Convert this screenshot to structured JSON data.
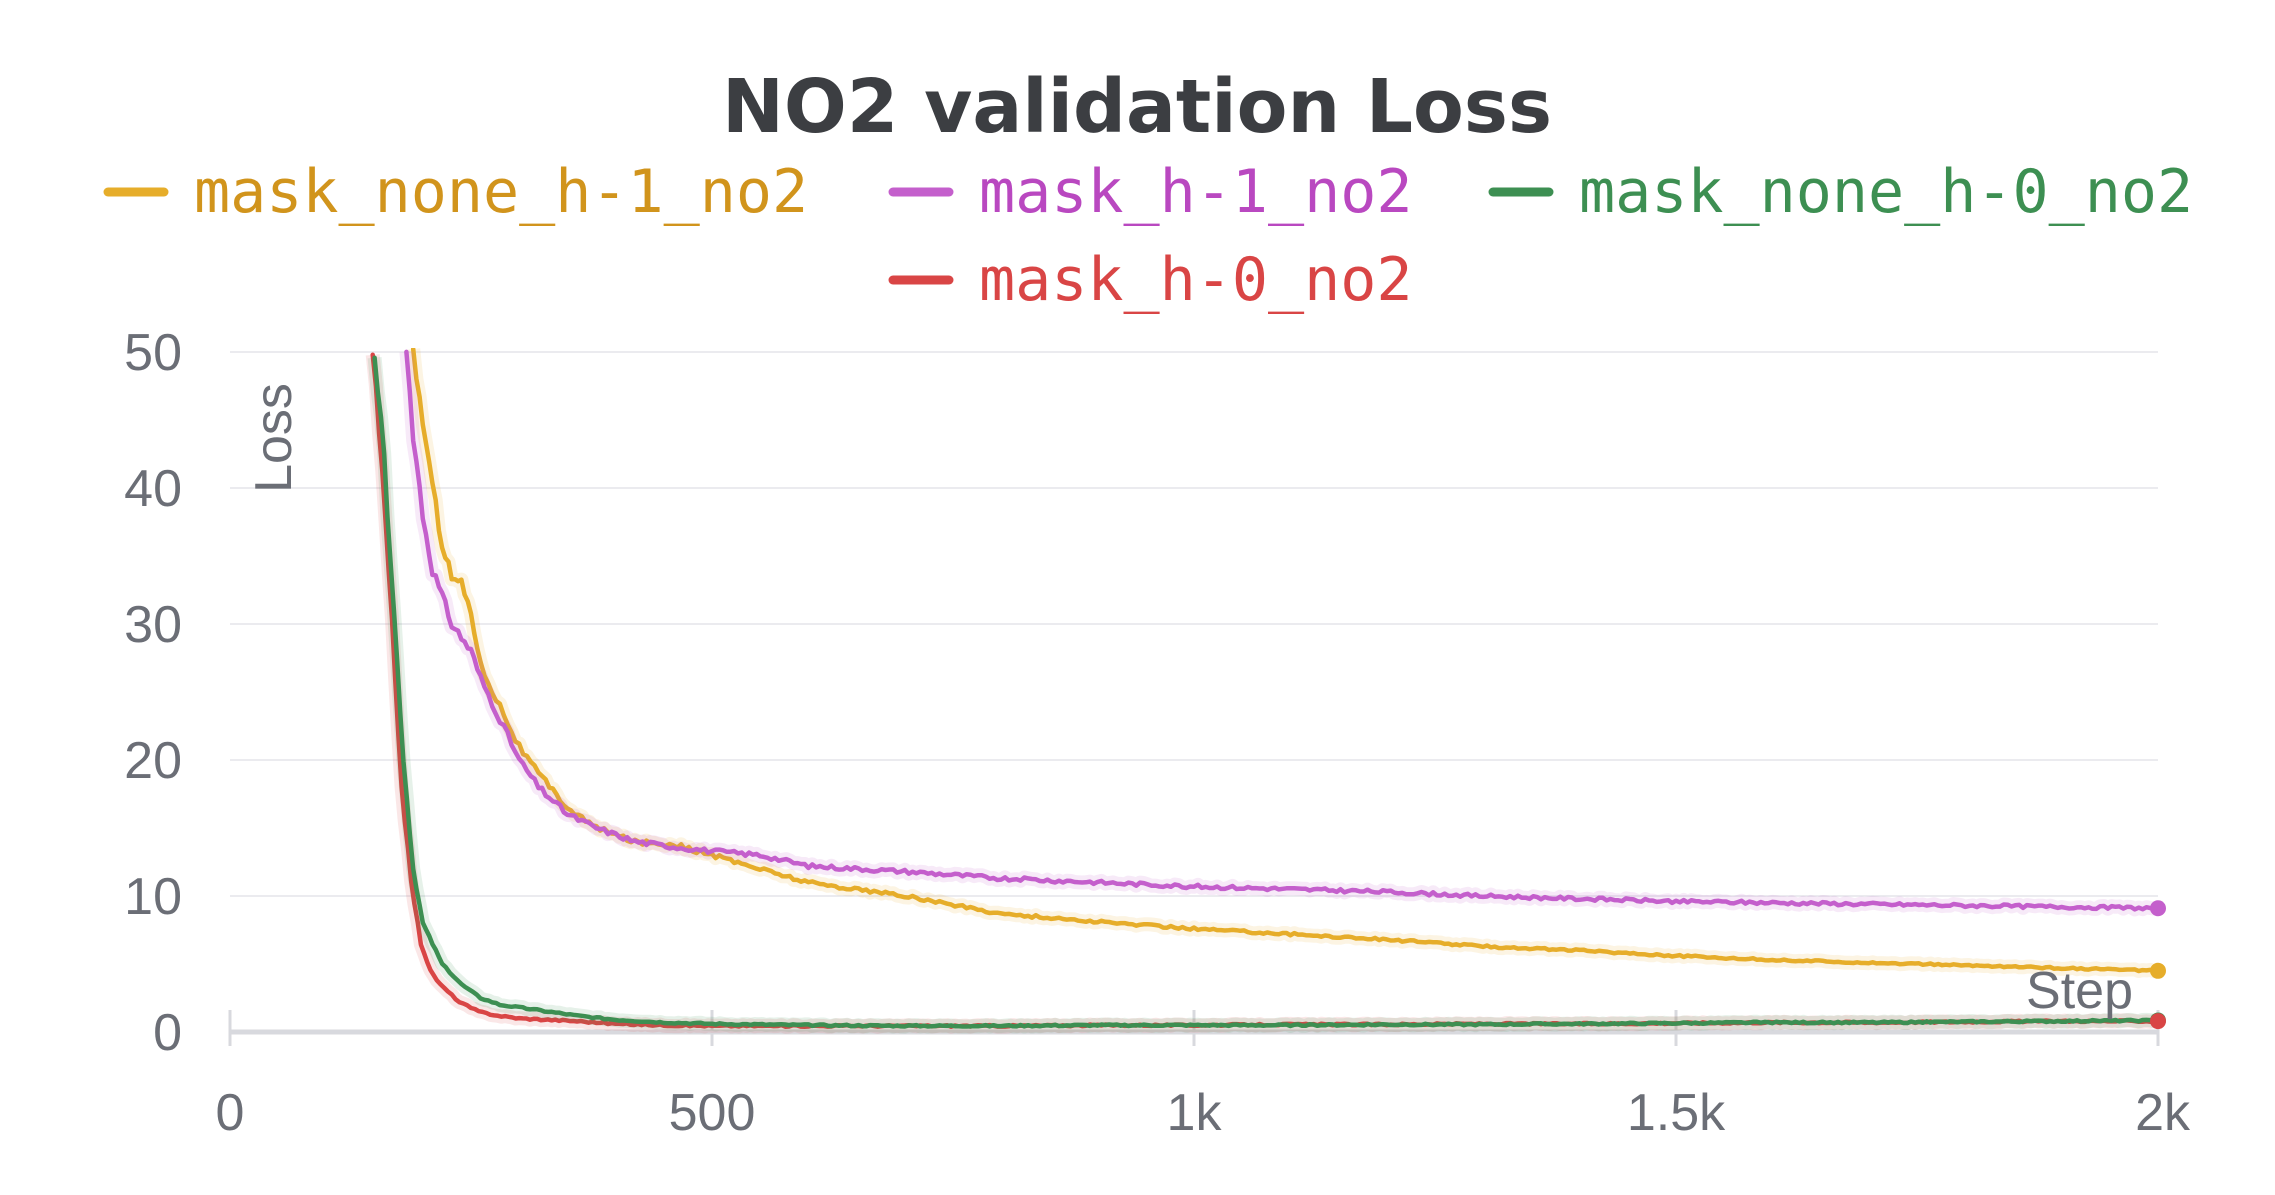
{
  "chart_data": {
    "type": "line",
    "title": "NO2 validation Loss",
    "xlabel": "Step",
    "ylabel": "Loss",
    "xlim": [
      0,
      2000
    ],
    "ylim": [
      0,
      50
    ],
    "x_ticks": [
      {
        "value": 0,
        "label": "0"
      },
      {
        "value": 500,
        "label": "500"
      },
      {
        "value": 1000,
        "label": "1k"
      },
      {
        "value": 1500,
        "label": "1.5k"
      },
      {
        "value": 2000,
        "label": "2k"
      }
    ],
    "y_ticks": [
      {
        "value": 0,
        "label": "0"
      },
      {
        "value": 10,
        "label": "10"
      },
      {
        "value": 20,
        "label": "20"
      },
      {
        "value": 30,
        "label": "30"
      },
      {
        "value": 40,
        "label": "40"
      },
      {
        "value": 50,
        "label": "50"
      }
    ],
    "grid": true,
    "legend_position": "top",
    "series": [
      {
        "name": "mask_none_h-1_no2",
        "color": "#e6ad2a",
        "legend_color": "#d1941c",
        "x": [
          190,
          200,
          210,
          220,
          230,
          240,
          250,
          260,
          280,
          300,
          320,
          350,
          380,
          420,
          460,
          500,
          550,
          600,
          700,
          800,
          900,
          1000,
          1100,
          1200,
          1300,
          1400,
          1500,
          1600,
          1700,
          1800,
          1900,
          2000
        ],
        "y": [
          50,
          45,
          40,
          36,
          33.5,
          33,
          31,
          27,
          24,
          21,
          19,
          16.5,
          15,
          14,
          13.8,
          13,
          12,
          11,
          10,
          8.7,
          8.1,
          7.6,
          7.2,
          6.8,
          6.3,
          6.0,
          5.6,
          5.3,
          5.1,
          4.9,
          4.7,
          4.5
        ]
      },
      {
        "name": "mask_h-1_no2",
        "color": "#c45fcc",
        "legend_color": "#b948c0",
        "x": [
          183,
          190,
          200,
          210,
          220,
          230,
          240,
          250,
          260,
          280,
          300,
          320,
          350,
          380,
          420,
          460,
          500,
          550,
          600,
          700,
          800,
          900,
          1000,
          1100,
          1200,
          1300,
          1400,
          1500,
          1600,
          1700,
          1800,
          1900,
          2000
        ],
        "y": [
          50,
          44,
          38,
          34,
          32,
          30,
          29,
          28,
          26,
          23,
          20,
          18,
          16,
          15,
          14,
          13.6,
          13.3,
          13,
          12.2,
          11.8,
          11.3,
          11,
          10.7,
          10.5,
          10.3,
          10,
          9.8,
          9.6,
          9.5,
          9.4,
          9.3,
          9.2,
          9.1
        ]
      },
      {
        "name": "mask_none_h-0_no2",
        "color": "#3d8f52",
        "legend_color": "#3d8f52",
        "x": [
          150,
          160,
          170,
          180,
          190,
          200,
          210,
          220,
          240,
          260,
          280,
          300,
          330,
          360,
          400,
          450,
          500,
          600,
          700,
          800,
          900,
          1000,
          1100,
          1200,
          1300,
          1400,
          1500,
          1600,
          1700,
          1800,
          1900,
          2000
        ],
        "y": [
          50,
          42,
          31,
          20,
          12,
          8,
          6.5,
          5,
          3.5,
          2.5,
          2,
          1.8,
          1.5,
          1.2,
          0.9,
          0.7,
          0.6,
          0.5,
          0.45,
          0.45,
          0.5,
          0.5,
          0.5,
          0.55,
          0.55,
          0.6,
          0.65,
          0.7,
          0.7,
          0.75,
          0.8,
          0.85
        ]
      },
      {
        "name": "mask_h-0_no2",
        "color": "#d94545",
        "legend_color": "#d94545",
        "x": [
          148,
          158,
          168,
          178,
          188,
          198,
          208,
          218,
          238,
          258,
          278,
          300,
          330,
          360,
          400,
          450,
          500,
          600,
          700,
          800,
          900,
          1000,
          1100,
          1200,
          1300,
          1400,
          1500,
          1600,
          1700,
          1800,
          1900,
          2000
        ],
        "y": [
          50,
          41,
          30,
          18,
          11,
          6.5,
          4.5,
          3.5,
          2.2,
          1.5,
          1.2,
          1.0,
          0.9,
          0.8,
          0.6,
          0.5,
          0.45,
          0.45,
          0.45,
          0.45,
          0.5,
          0.5,
          0.55,
          0.55,
          0.6,
          0.6,
          0.65,
          0.7,
          0.7,
          0.75,
          0.8,
          0.8
        ]
      }
    ]
  }
}
